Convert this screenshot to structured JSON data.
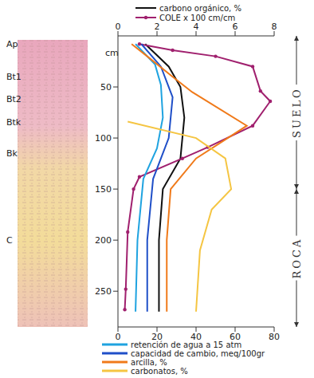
{
  "chart_data": {
    "type": "line",
    "y_label": "cm",
    "ylim": [
      0,
      285
    ],
    "yticks": [
      50,
      100,
      150,
      200,
      250
    ],
    "xlim": [
      0,
      80
    ],
    "xticks": [
      0,
      20,
      40,
      60,
      80
    ],
    "x2lim": [
      0,
      8
    ],
    "x2ticks": [
      0,
      2,
      4,
      6,
      8
    ],
    "series": [
      {
        "name": "carbono orgánico, %",
        "color": "#111111",
        "axis": "x2",
        "marker": "none",
        "depth": [
          8,
          30,
          50,
          80,
          120,
          150,
          200,
          270
        ],
        "values": [
          1.4,
          2.6,
          3.2,
          3.4,
          3.2,
          2.3,
          2.1,
          2.1
        ]
      },
      {
        "name": "COLE x 100 cm/cm",
        "color": "#a0206e",
        "axis": "x2",
        "marker": "dot",
        "depth": [
          8,
          14,
          20,
          30,
          54,
          64,
          88,
          109,
          120,
          138,
          150,
          192,
          248,
          268
        ],
        "values": [
          1.1,
          2.8,
          5.0,
          6.9,
          7.3,
          7.8,
          6.9,
          4.6,
          3.3,
          1.1,
          0.8,
          0.5,
          0.4,
          0.35
        ]
      },
      {
        "name": "retención de agua a 15 atm",
        "color": "#1fa3e0",
        "axis": "x",
        "marker": "none",
        "depth": [
          8,
          28,
          48,
          80,
          110,
          140,
          200,
          270
        ],
        "values": [
          9,
          19,
          22,
          23,
          20,
          13,
          10,
          9
        ]
      },
      {
        "name": "capacidad de cambio, meq/100gr",
        "color": "#1f4fc8",
        "axis": "x",
        "marker": "none",
        "depth": [
          8,
          30,
          60,
          100,
          140,
          200,
          270
        ],
        "values": [
          12,
          22,
          28,
          26,
          18,
          15,
          15
        ]
      },
      {
        "name": "arcilla, %",
        "color": "#f07a1a",
        "axis": "x",
        "marker": "none",
        "depth": [
          8,
          20,
          40,
          55,
          88,
          120,
          150,
          200,
          270
        ],
        "values": [
          7,
          15,
          28,
          38,
          66,
          40,
          27,
          25,
          25
        ]
      },
      {
        "name": "carbonatos, %",
        "color": "#f5c542",
        "axis": "x",
        "marker": "none",
        "depth": [
          84,
          100,
          120,
          150,
          170,
          210,
          270
        ],
        "values": [
          5,
          40,
          55,
          58,
          48,
          42,
          40
        ]
      }
    ],
    "horizons": [
      {
        "label": "Ap",
        "depth": 8
      },
      {
        "label": "Bt1",
        "depth": 40
      },
      {
        "label": "Bt2",
        "depth": 62
      },
      {
        "label": "Btk",
        "depth": 84
      },
      {
        "label": "Bk",
        "depth": 115
      },
      {
        "label": "C",
        "depth": 200
      }
    ],
    "sections": [
      {
        "label": "SUELO",
        "from": 0,
        "to": 150
      },
      {
        "label": "ROCA",
        "from": 150,
        "to": 285
      }
    ]
  }
}
